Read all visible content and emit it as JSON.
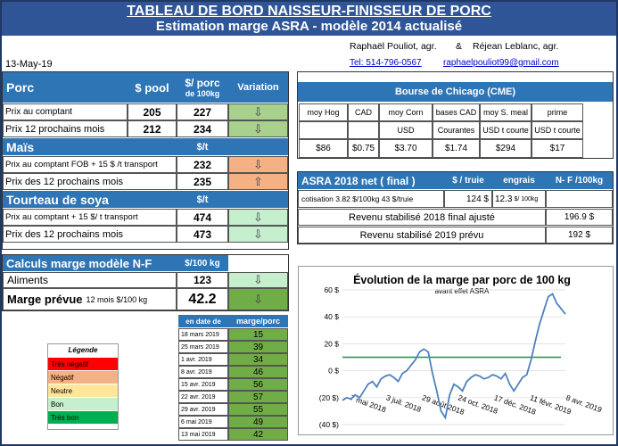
{
  "header": {
    "title": "TABLEAU DE BORD NAISSEUR-FINISSEUR DE PORC",
    "subtitle": "Estimation marge ASRA - modèle 2014 actualisé"
  },
  "date": "13-May-19",
  "authors": {
    "name1": "Raphaël Pouliot, agr.",
    "amp": "&",
    "name2": "Réjean Leblanc, agr.",
    "phone": "Tel:    514-796-0567",
    "email": "raphaelpouliot99@gmail.com"
  },
  "porc": {
    "title": "Porc",
    "col1": "$ pool",
    "col2a": "$/ porc",
    "col2b": "de 100kg",
    "col3": "Variation",
    "rows": [
      {
        "label": "Prix au comptant",
        "pool": "205",
        "porc": "227"
      },
      {
        "label": "Prix 12 prochains mois",
        "pool": "212",
        "porc": "234"
      }
    ]
  },
  "mais": {
    "title": "Maïs",
    "unit": "$/t",
    "rows": [
      {
        "label": "Prix au comptant  FOB + 15 $ /t transport",
        "value": "232"
      },
      {
        "label": "Prix des 12 prochains mois",
        "value": "235"
      }
    ]
  },
  "soya": {
    "title": "Tourteau de soya",
    "unit": "$/t",
    "rows": [
      {
        "label": "Prix au comptant  + 15 $/ t  transport",
        "value": "474"
      },
      {
        "label": "Prix des 12 prochains mois",
        "value": "473"
      }
    ]
  },
  "calculs": {
    "title": "Calculs marge  modèle N-F",
    "unit": "$/100 kg",
    "aliments_label": "Aliments",
    "aliments_value": "123",
    "marge_label": "Marge prévue",
    "marge_suffix": "12 mois  $/100 kg",
    "marge_value": "42.2"
  },
  "history": {
    "col1": "en date de",
    "col2": "marge/porc",
    "rows": [
      [
        "18 mars 2019",
        "15"
      ],
      [
        "25 mars 2019",
        "39"
      ],
      [
        "1 avr. 2019",
        "34"
      ],
      [
        "8 avr. 2019",
        "46"
      ],
      [
        "15 avr. 2019",
        "56"
      ],
      [
        "22 avr. 2019",
        "57"
      ],
      [
        "29 avr. 2019",
        "55"
      ],
      [
        "6 mai 2019",
        "49"
      ],
      [
        "13 mai 2019",
        "42"
      ]
    ]
  },
  "legend": {
    "title": "Légende",
    "items": [
      {
        "label": "Très négatif",
        "color": "#ff0000"
      },
      {
        "label": "Négatif",
        "color": "#f4b183"
      },
      {
        "label": "Neutre",
        "color": "#ffe699"
      },
      {
        "label": "Bon",
        "color": "#c6efce"
      },
      {
        "label": "Très bon",
        "color": "#00b050"
      }
    ]
  },
  "chicago": {
    "title": "Bourse de Chicago (CME)",
    "cols": [
      "moy Hog",
      "CAD",
      "moy Corn",
      "bases CAD",
      "moy S. meal",
      "prime"
    ],
    "units": [
      "",
      "",
      "USD",
      "Courantes",
      "USD t courte",
      "USD t courte"
    ],
    "values": [
      "$86",
      "$0.75",
      "$3.70",
      "$1.74",
      "$294",
      "$17"
    ]
  },
  "asra": {
    "title": "ASRA 2018 net ( final )",
    "col1": "$ / truie",
    "col2": "engrais",
    "col3": "N- F /100kg",
    "cotisation": "cotisation 3.82 $/100kg  43 $/truie",
    "truie": "124  $",
    "engrais": "12.3",
    "engrais_unit": "$/ 100kg",
    "rev2018_label": "Revenu stabilisé 2018  final ajusté",
    "rev2018": "196.9 $",
    "rev2019_label": "Revenu stabilisé 2019 prévu",
    "rev2019": "192 $"
  },
  "chart_data": {
    "type": "line",
    "title": "Évolution de la marge par porc de 100 kg",
    "subtitle": "avant effet ASRA",
    "ylim": [
      -40,
      60
    ],
    "yticks": [
      "60 $",
      "40 $",
      "20 $",
      "0 $",
      "(20 $)",
      "(40 $)"
    ],
    "xticks": [
      "7 mai 2018",
      "3 juil. 2018",
      "29 août 2018",
      "24 oct. 2018",
      "17 déc. 2018",
      "11 févr. 2019",
      "8 avr. 2019"
    ],
    "series": [
      {
        "values": [
          -22,
          -20,
          -21,
          -18,
          -20,
          -15,
          -10,
          -8,
          -12,
          -6,
          -4,
          -3,
          -5,
          -8,
          -2,
          0,
          4,
          8,
          14,
          16,
          14,
          -2,
          -15,
          -30,
          -35,
          -18,
          -10,
          -12,
          -15,
          -8,
          -5,
          -3,
          -4,
          -6,
          -5,
          -3,
          -4,
          -6,
          -2,
          -10,
          -15,
          -10,
          -5,
          -3,
          8,
          22,
          35,
          45,
          55,
          57,
          50,
          46,
          42
        ]
      }
    ],
    "baseline": 10
  }
}
